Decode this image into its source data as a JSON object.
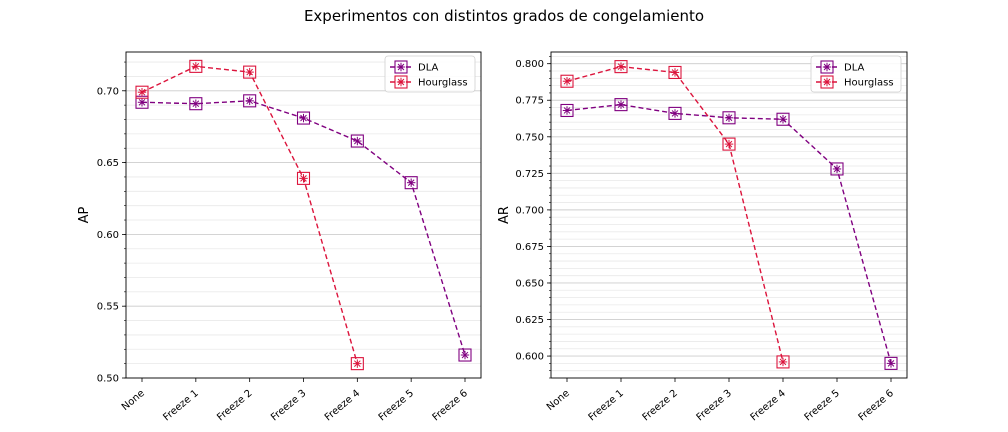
{
  "figure": {
    "title": "Experimentos con distintos grados de congelamiento"
  },
  "chart_data": [
    {
      "type": "line",
      "title": "",
      "xlabel": "",
      "ylabel": "AP",
      "categories": [
        "None",
        "Freeze 1",
        "Freeze 2",
        "Freeze 3",
        "Freeze 4",
        "Freeze 5",
        "Freeze 6"
      ],
      "yticks": [
        "0.50",
        "0.55",
        "0.60",
        "0.65",
        "0.70"
      ],
      "ylim": [
        0.5,
        0.727
      ],
      "major_tick_step": 0.05,
      "minor_tick_step": 0.01,
      "grid": "horizontal, major and minor",
      "legend": "upper right",
      "series": [
        {
          "name": "DLA",
          "color": "#800080",
          "linestyle": "dashed",
          "marker": "boxed-asterisk",
          "values": [
            0.692,
            0.691,
            0.693,
            0.681,
            0.665,
            0.636,
            0.516
          ]
        },
        {
          "name": "Hourglass",
          "color": "#dc143c",
          "linestyle": "dashed",
          "marker": "boxed-asterisk",
          "values": [
            0.699,
            0.717,
            0.713,
            0.639,
            0.51,
            null,
            null
          ]
        }
      ]
    },
    {
      "type": "line",
      "title": "",
      "xlabel": "",
      "ylabel": "AR",
      "categories": [
        "None",
        "Freeze 1",
        "Freeze 2",
        "Freeze 3",
        "Freeze 4",
        "Freeze 5",
        "Freeze 6"
      ],
      "yticks": [
        "0.600",
        "0.625",
        "0.650",
        "0.675",
        "0.700",
        "0.725",
        "0.750",
        "0.775",
        "0.800"
      ],
      "ylim": [
        0.585,
        0.808
      ],
      "major_tick_step": 0.025,
      "minor_tick_step": 0.005,
      "grid": "horizontal, major and minor",
      "legend": "upper right",
      "series": [
        {
          "name": "DLA",
          "color": "#800080",
          "linestyle": "dashed",
          "marker": "boxed-asterisk",
          "values": [
            0.768,
            0.772,
            0.766,
            0.763,
            0.762,
            0.728,
            0.595
          ]
        },
        {
          "name": "Hourglass",
          "color": "#dc143c",
          "linestyle": "dashed",
          "marker": "boxed-asterisk",
          "values": [
            0.788,
            0.798,
            0.794,
            0.745,
            0.596,
            null,
            null
          ]
        }
      ]
    }
  ]
}
